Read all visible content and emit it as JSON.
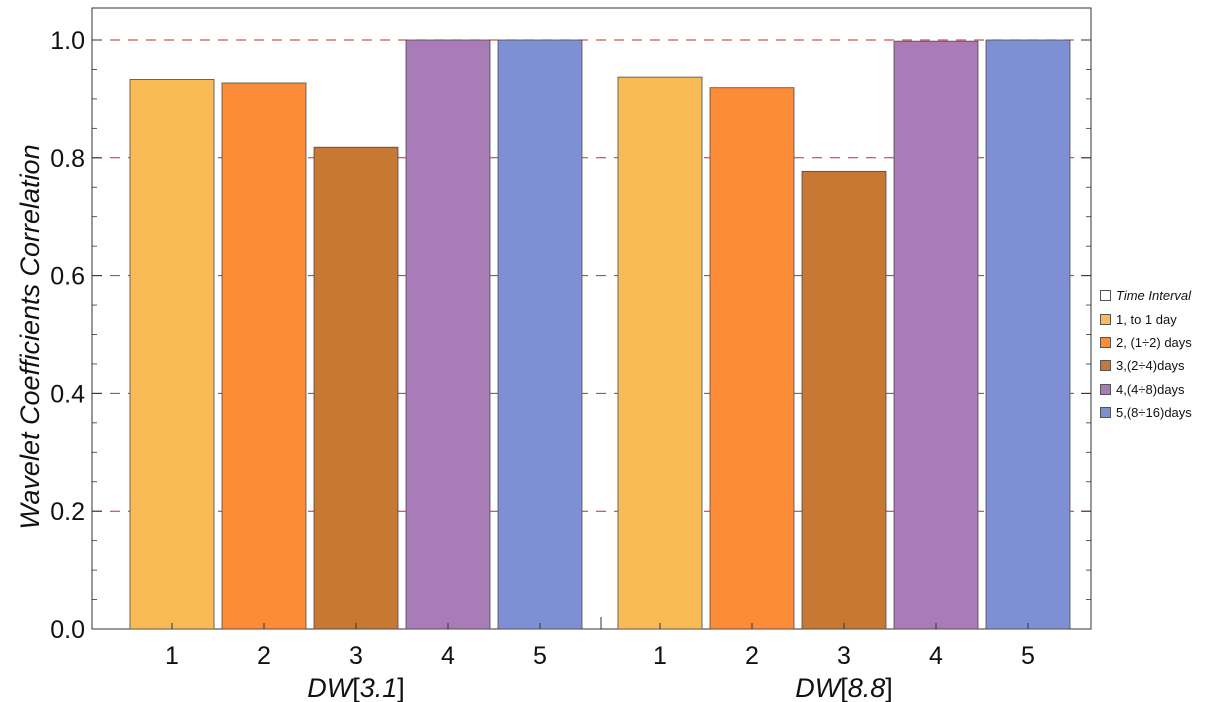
{
  "chart_data": {
    "type": "bar",
    "ylabel": "Wavelet Coefficients Correlation",
    "ylim": [
      0,
      1.05
    ],
    "y_ticks": [
      "0.0",
      "0.2",
      "0.4",
      "0.6",
      "0.8",
      "1.0"
    ],
    "y_tick_values": [
      0,
      0.2,
      0.4,
      0.6,
      0.8,
      1.0
    ],
    "reference_lines": [
      1.0,
      0.8,
      0.6,
      0.4,
      0.2
    ],
    "groups": [
      {
        "label_name": "DW",
        "label_arg": "3.1",
        "categories": [
          "1",
          "2",
          "3",
          "4",
          "5"
        ],
        "values": [
          0.933,
          0.927,
          0.818,
          1.0,
          1.0
        ]
      },
      {
        "label_name": "DW",
        "label_arg": "8.8",
        "categories": [
          "1",
          "2",
          "3",
          "4",
          "5"
        ],
        "values": [
          0.937,
          0.919,
          0.777,
          0.998,
          1.0
        ]
      }
    ],
    "colors": [
      "#F9BB55",
      "#FD8C38",
      "#C77934",
      "#A97CB8",
      "#7F8FD4"
    ],
    "legend": {
      "title": "Time Interval",
      "placement": "right",
      "entries": [
        "1, to 1 day",
        "2, (1÷2) days",
        "3,(2÷4)days",
        "4,(4÷8)days",
        "5,(8÷16)days"
      ]
    },
    "grid": false
  }
}
